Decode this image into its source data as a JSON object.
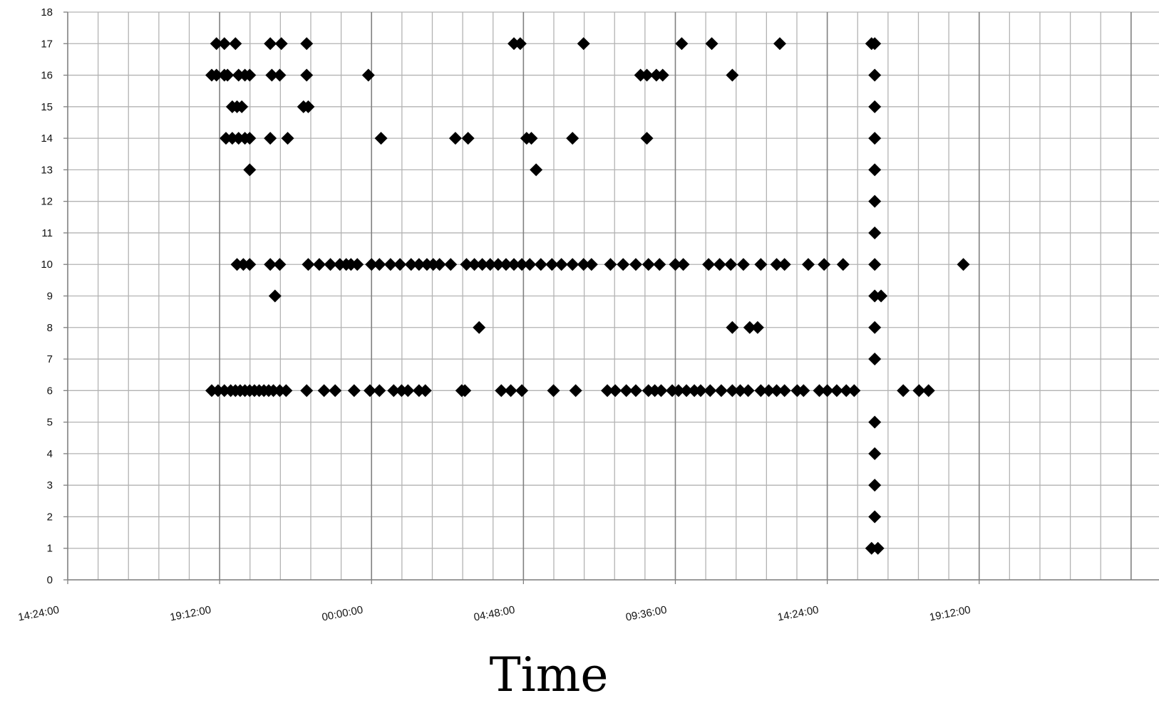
{
  "chart_data": {
    "type": "scatter",
    "title": "",
    "xlabel": "Time",
    "ylabel": "",
    "ylim": [
      0,
      18
    ],
    "y_ticks": [
      "0",
      "1",
      "2",
      "3",
      "4",
      "5",
      "6",
      "7",
      "8",
      "9",
      "10",
      "11",
      "12",
      "13",
      "14",
      "15",
      "16",
      "17",
      "18"
    ],
    "x_tick_labels": [
      "14:24:00",
      "19:12:00",
      "00:00:00",
      "04:48:00",
      "09:36:00",
      "14:24:00",
      "19:12:00"
    ],
    "x_range_hours": [
      0,
      33.6
    ],
    "x_tick_step_hours": 4.8,
    "x_minor_grid_step_hours": 0.96,
    "grid": true,
    "marker": "diamond",
    "marker_color": "#000000",
    "grid_color": "#b3b3b3",
    "major_grid_color": "#808080",
    "series": [
      {
        "points": [
          [
            4.7,
            17
          ],
          [
            4.95,
            17
          ],
          [
            5.3,
            17
          ],
          [
            6.4,
            17
          ],
          [
            6.75,
            17
          ],
          [
            7.55,
            17
          ],
          [
            14.1,
            17
          ],
          [
            14.3,
            17
          ],
          [
            16.3,
            17
          ],
          [
            19.4,
            17
          ],
          [
            20.35,
            17
          ],
          [
            22.5,
            17
          ],
          [
            25.4,
            17
          ],
          [
            25.5,
            17
          ],
          [
            4.55,
            16
          ],
          [
            4.7,
            16
          ],
          [
            4.95,
            16
          ],
          [
            5.05,
            16
          ],
          [
            5.4,
            16
          ],
          [
            5.6,
            16
          ],
          [
            5.75,
            16
          ],
          [
            6.45,
            16
          ],
          [
            6.7,
            16
          ],
          [
            7.55,
            16
          ],
          [
            9.5,
            16
          ],
          [
            18.1,
            16
          ],
          [
            18.3,
            16
          ],
          [
            18.6,
            16
          ],
          [
            18.8,
            16
          ],
          [
            21.0,
            16
          ],
          [
            25.5,
            16
          ],
          [
            5.2,
            15
          ],
          [
            5.35,
            15
          ],
          [
            5.5,
            15
          ],
          [
            7.45,
            15
          ],
          [
            7.6,
            15
          ],
          [
            25.5,
            15
          ],
          [
            5.0,
            14
          ],
          [
            5.2,
            14
          ],
          [
            5.4,
            14
          ],
          [
            5.6,
            14
          ],
          [
            5.75,
            14
          ],
          [
            6.4,
            14
          ],
          [
            6.95,
            14
          ],
          [
            9.9,
            14
          ],
          [
            12.25,
            14
          ],
          [
            12.65,
            14
          ],
          [
            14.5,
            14
          ],
          [
            14.65,
            14
          ],
          [
            15.95,
            14
          ],
          [
            18.3,
            14
          ],
          [
            25.5,
            14
          ],
          [
            5.75,
            13
          ],
          [
            14.8,
            13
          ],
          [
            25.5,
            13
          ],
          [
            25.5,
            12
          ],
          [
            25.5,
            11
          ],
          [
            5.35,
            10
          ],
          [
            5.55,
            10
          ],
          [
            5.75,
            10
          ],
          [
            6.4,
            10
          ],
          [
            6.7,
            10
          ],
          [
            7.6,
            10
          ],
          [
            7.95,
            10
          ],
          [
            8.3,
            10
          ],
          [
            8.6,
            10
          ],
          [
            8.8,
            10
          ],
          [
            8.95,
            10
          ],
          [
            9.15,
            10
          ],
          [
            9.6,
            10
          ],
          [
            9.85,
            10
          ],
          [
            10.2,
            10
          ],
          [
            10.5,
            10
          ],
          [
            10.85,
            10
          ],
          [
            11.1,
            10
          ],
          [
            11.35,
            10
          ],
          [
            11.55,
            10
          ],
          [
            11.75,
            10
          ],
          [
            12.1,
            10
          ],
          [
            12.6,
            10
          ],
          [
            12.85,
            10
          ],
          [
            13.1,
            10
          ],
          [
            13.35,
            10
          ],
          [
            13.6,
            10
          ],
          [
            13.85,
            10
          ],
          [
            14.1,
            10
          ],
          [
            14.35,
            10
          ],
          [
            14.6,
            10
          ],
          [
            14.95,
            10
          ],
          [
            15.3,
            10
          ],
          [
            15.6,
            10
          ],
          [
            15.95,
            10
          ],
          [
            16.3,
            10
          ],
          [
            16.55,
            10
          ],
          [
            17.15,
            10
          ],
          [
            17.55,
            10
          ],
          [
            17.95,
            10
          ],
          [
            18.35,
            10
          ],
          [
            18.7,
            10
          ],
          [
            19.2,
            10
          ],
          [
            19.45,
            10
          ],
          [
            20.25,
            10
          ],
          [
            20.6,
            10
          ],
          [
            20.95,
            10
          ],
          [
            21.35,
            10
          ],
          [
            21.9,
            10
          ],
          [
            22.4,
            10
          ],
          [
            22.65,
            10
          ],
          [
            23.4,
            10
          ],
          [
            23.9,
            10
          ],
          [
            24.5,
            10
          ],
          [
            25.5,
            10
          ],
          [
            28.3,
            10
          ],
          [
            6.55,
            9
          ],
          [
            25.5,
            9
          ],
          [
            25.7,
            9
          ],
          [
            13.0,
            8
          ],
          [
            21.0,
            8
          ],
          [
            21.55,
            8
          ],
          [
            21.8,
            8
          ],
          [
            25.5,
            8
          ],
          [
            25.5,
            7
          ],
          [
            4.55,
            6
          ],
          [
            4.75,
            6
          ],
          [
            4.95,
            6
          ],
          [
            5.15,
            6
          ],
          [
            5.3,
            6
          ],
          [
            5.45,
            6
          ],
          [
            5.6,
            6
          ],
          [
            5.75,
            6
          ],
          [
            5.9,
            6
          ],
          [
            6.05,
            6
          ],
          [
            6.2,
            6
          ],
          [
            6.35,
            6
          ],
          [
            6.5,
            6
          ],
          [
            6.7,
            6
          ],
          [
            6.9,
            6
          ],
          [
            7.55,
            6
          ],
          [
            8.1,
            6
          ],
          [
            8.45,
            6
          ],
          [
            9.05,
            6
          ],
          [
            9.55,
            6
          ],
          [
            9.85,
            6
          ],
          [
            10.3,
            6
          ],
          [
            10.55,
            6
          ],
          [
            10.75,
            6
          ],
          [
            11.1,
            6
          ],
          [
            11.3,
            6
          ],
          [
            12.45,
            6
          ],
          [
            12.55,
            6
          ],
          [
            13.7,
            6
          ],
          [
            14.0,
            6
          ],
          [
            14.35,
            6
          ],
          [
            15.35,
            6
          ],
          [
            16.05,
            6
          ],
          [
            17.05,
            6
          ],
          [
            17.3,
            6
          ],
          [
            17.65,
            6
          ],
          [
            17.95,
            6
          ],
          [
            18.35,
            6
          ],
          [
            18.55,
            6
          ],
          [
            18.75,
            6
          ],
          [
            19.1,
            6
          ],
          [
            19.3,
            6
          ],
          [
            19.55,
            6
          ],
          [
            19.8,
            6
          ],
          [
            20.0,
            6
          ],
          [
            20.3,
            6
          ],
          [
            20.65,
            6
          ],
          [
            21.0,
            6
          ],
          [
            21.25,
            6
          ],
          [
            21.5,
            6
          ],
          [
            21.9,
            6
          ],
          [
            22.15,
            6
          ],
          [
            22.4,
            6
          ],
          [
            22.65,
            6
          ],
          [
            23.05,
            6
          ],
          [
            23.25,
            6
          ],
          [
            23.75,
            6
          ],
          [
            24.0,
            6
          ],
          [
            24.3,
            6
          ],
          [
            24.6,
            6
          ],
          [
            24.85,
            6
          ],
          [
            26.4,
            6
          ],
          [
            26.9,
            6
          ],
          [
            27.2,
            6
          ],
          [
            25.5,
            5
          ],
          [
            25.5,
            4
          ],
          [
            25.5,
            3
          ],
          [
            25.5,
            2
          ],
          [
            25.4,
            1
          ],
          [
            25.6,
            1
          ]
        ]
      }
    ]
  }
}
